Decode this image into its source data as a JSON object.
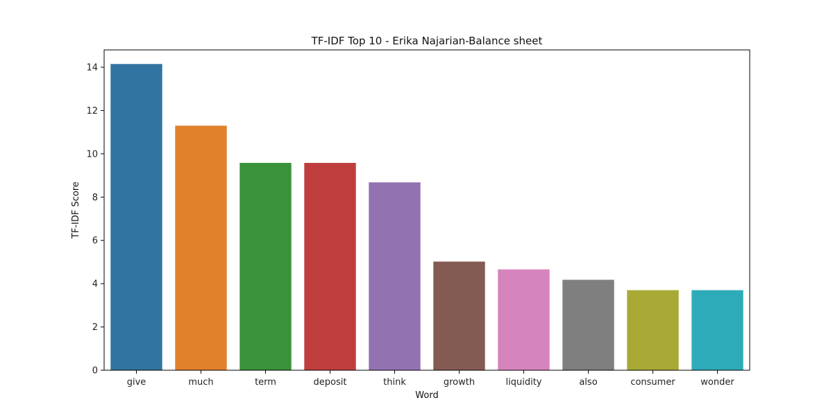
{
  "chart_data": {
    "type": "bar",
    "title": "TF-IDF Top 10 - Erika Najarian-Balance sheet",
    "xlabel": "Word",
    "ylabel": "TF-IDF Score",
    "categories": [
      "give",
      "much",
      "term",
      "deposit",
      "think",
      "growth",
      "liquidity",
      "also",
      "consumer",
      "wonder"
    ],
    "values": [
      14.15,
      11.3,
      9.58,
      9.58,
      8.68,
      5.02,
      4.66,
      4.18,
      3.7,
      3.7
    ],
    "colors": [
      "#3274a1",
      "#e1812c",
      "#3a923a",
      "#c03d3e",
      "#9372b2",
      "#845b53",
      "#d684bd",
      "#7f7f7f",
      "#a9aa35",
      "#2eabb8"
    ],
    "ylim": [
      0,
      14.8
    ],
    "yticks": [
      0,
      2,
      4,
      6,
      8,
      10,
      12,
      14
    ],
    "grid": false,
    "legend": "none"
  }
}
